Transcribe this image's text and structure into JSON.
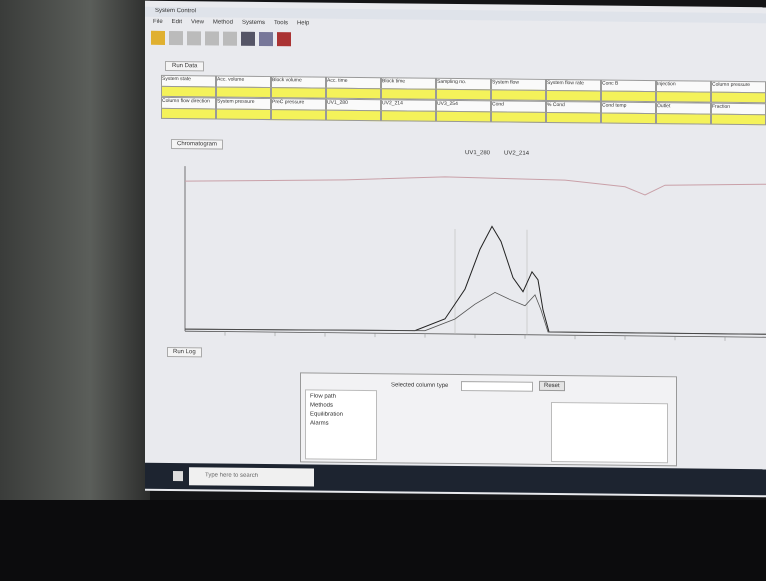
{
  "window": {
    "title": "System Control",
    "menu": [
      "File",
      "Edit",
      "View",
      "Method",
      "Systems",
      "Tools",
      "Help"
    ],
    "tab": "Run Data"
  },
  "status_table": {
    "labels": [
      [
        "System state",
        "Acc. volume",
        "Block volume",
        "Acc. time",
        "Block time",
        "Sampling no.",
        "System flow",
        "System flow rate",
        "Conc B",
        "Injection",
        "Column pressure"
      ],
      [
        "Column flow direction",
        "System pressure",
        "PreC pressure",
        "UV1_280",
        "UV2_214",
        "UV3_254",
        "Cond",
        "% Cond",
        "Cond temp",
        "Outlet",
        "Fraction"
      ]
    ]
  },
  "chromatogram": {
    "tab": "Chromatogram",
    "legend": [
      "UV1_280",
      "UV2_214"
    ]
  },
  "lower_panel": {
    "tab": "Run Log",
    "dialog": {
      "field": "Selected column type",
      "button": "Reset",
      "list": [
        "Flow path",
        "Methods",
        "Equilibration",
        "Alarms"
      ]
    }
  },
  "taskbar": {
    "search": "Type here to search"
  }
}
